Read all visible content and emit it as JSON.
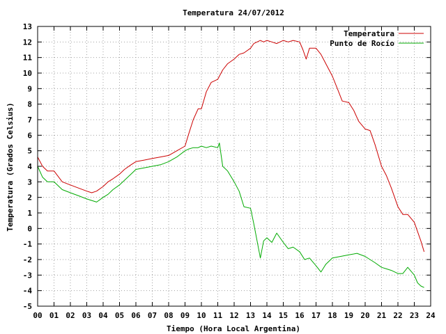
{
  "chart_data": {
    "type": "line",
    "title": "Temperatura 24/07/2012",
    "xlabel": "Tiempo (Hora Local Argentina)",
    "ylabel": "Temperatura (Grados Celsius)",
    "xlim": [
      0,
      24
    ],
    "ylim": [
      -5,
      13
    ],
    "x_ticks": [
      "00",
      "01",
      "02",
      "03",
      "04",
      "05",
      "06",
      "07",
      "08",
      "09",
      "10",
      "11",
      "12",
      "13",
      "14",
      "15",
      "16",
      "17",
      "18",
      "19",
      "20",
      "21",
      "22",
      "23",
      "24"
    ],
    "y_ticks": [
      "13",
      "12",
      "11",
      "10",
      "9",
      "8",
      "7",
      "6",
      "5",
      "4",
      "3",
      "2",
      "1",
      "0",
      "-1",
      "-2",
      "-3",
      "-4",
      "-5"
    ],
    "grid": true,
    "legend_position": "top-right",
    "series": [
      {
        "name": "Temperatura",
        "color": "#cc0000",
        "x": [
          0,
          0.3,
          0.6,
          1.0,
          1.5,
          2.0,
          2.5,
          3.0,
          3.3,
          3.6,
          4.0,
          4.3,
          4.6,
          5.0,
          5.3,
          5.7,
          6.0,
          6.5,
          7.0,
          7.5,
          8.0,
          8.5,
          9.0,
          9.2,
          9.5,
          9.8,
          10.0,
          10.3,
          10.6,
          11.0,
          11.3,
          11.6,
          12.0,
          12.3,
          12.6,
          13.0,
          13.2,
          13.4,
          13.6,
          13.8,
          14.0,
          14.3,
          14.6,
          15.0,
          15.3,
          15.6,
          16.0,
          16.2,
          16.4,
          16.6,
          17.0,
          17.3,
          17.6,
          18.0,
          18.3,
          18.6,
          19.0,
          19.3,
          19.6,
          20.0,
          20.3,
          20.6,
          21.0,
          21.3,
          21.6,
          22.0,
          22.3,
          22.6,
          23.0,
          23.2,
          23.4,
          23.6
        ],
        "y": [
          4.6,
          4.0,
          3.7,
          3.7,
          3.0,
          2.8,
          2.6,
          2.4,
          2.3,
          2.4,
          2.7,
          3.0,
          3.2,
          3.5,
          3.8,
          4.1,
          4.3,
          4.4,
          4.5,
          4.6,
          4.7,
          5.0,
          5.3,
          6.0,
          7.0,
          7.7,
          7.7,
          8.8,
          9.4,
          9.6,
          10.2,
          10.6,
          10.9,
          11.2,
          11.3,
          11.6,
          11.9,
          12.0,
          12.1,
          12.0,
          12.1,
          12.0,
          11.9,
          12.1,
          12.0,
          12.1,
          12.0,
          11.5,
          10.9,
          11.6,
          11.6,
          11.2,
          10.6,
          9.8,
          9.0,
          8.2,
          8.1,
          7.6,
          6.9,
          6.4,
          6.3,
          5.4,
          4.0,
          3.4,
          2.6,
          1.4,
          0.9,
          0.9,
          0.4,
          -0.2,
          -0.8,
          -1.5
        ]
      },
      {
        "name": "Punto de Rocío",
        "color": "#00aa00",
        "x": [
          0,
          0.3,
          0.6,
          1.0,
          1.5,
          2.0,
          2.5,
          3.0,
          3.3,
          3.6,
          4.0,
          4.3,
          4.6,
          5.0,
          5.3,
          5.7,
          6.0,
          6.5,
          7.0,
          7.5,
          8.0,
          8.5,
          9.0,
          9.2,
          9.5,
          9.8,
          10.0,
          10.3,
          10.6,
          11.0,
          11.1,
          11.3,
          11.6,
          12.0,
          12.3,
          12.6,
          13.0,
          13.2,
          13.4,
          13.6,
          13.8,
          14.0,
          14.3,
          14.6,
          15.0,
          15.3,
          15.6,
          16.0,
          16.3,
          16.6,
          17.0,
          17.3,
          17.6,
          18.0,
          18.5,
          19.0,
          19.5,
          20.0,
          20.3,
          20.6,
          21.0,
          21.3,
          21.6,
          22.0,
          22.3,
          22.6,
          23.0,
          23.2,
          23.4,
          23.6
        ],
        "y": [
          4.0,
          3.3,
          3.0,
          3.0,
          2.5,
          2.3,
          2.1,
          1.9,
          1.8,
          1.7,
          2.0,
          2.2,
          2.5,
          2.8,
          3.1,
          3.5,
          3.8,
          3.9,
          4.0,
          4.1,
          4.3,
          4.6,
          5.0,
          5.1,
          5.2,
          5.2,
          5.3,
          5.2,
          5.3,
          5.2,
          5.5,
          4.0,
          3.7,
          3.0,
          2.4,
          1.4,
          1.3,
          0.3,
          -0.8,
          -1.9,
          -0.8,
          -0.6,
          -0.9,
          -0.3,
          -0.9,
          -1.3,
          -1.2,
          -1.5,
          -2.0,
          -1.9,
          -2.4,
          -2.8,
          -2.3,
          -1.9,
          -1.8,
          -1.7,
          -1.6,
          -1.8,
          -2.0,
          -2.2,
          -2.5,
          -2.6,
          -2.7,
          -2.9,
          -2.9,
          -2.5,
          -3.0,
          -3.5,
          -3.7,
          -3.8
        ]
      }
    ]
  }
}
